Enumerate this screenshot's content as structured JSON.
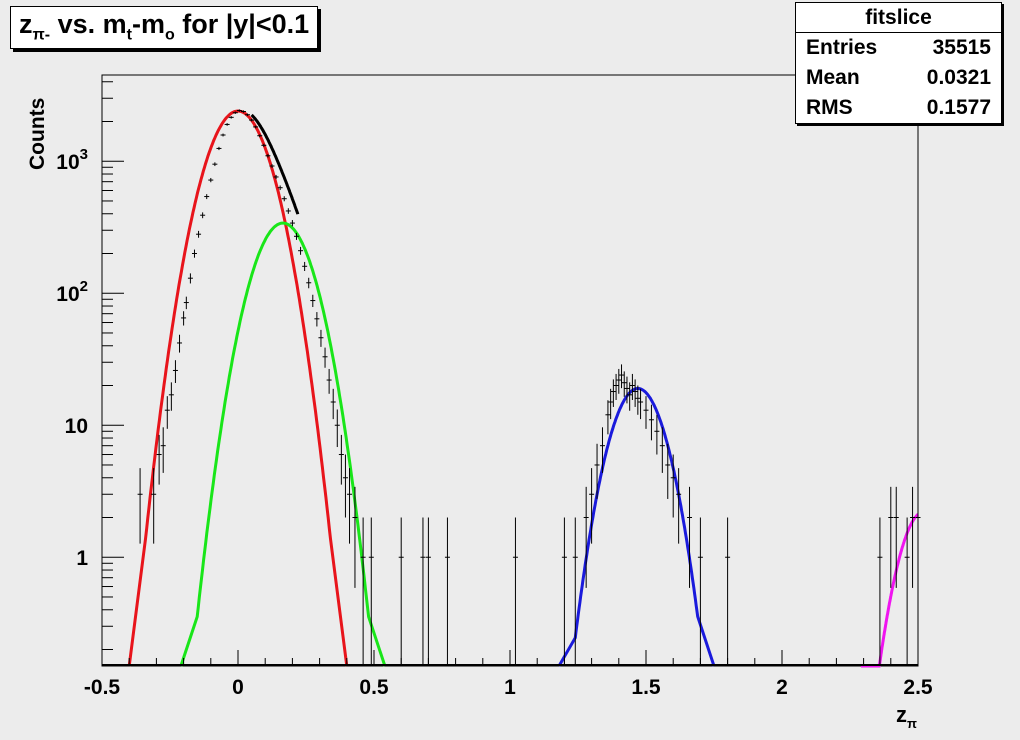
{
  "title": {
    "main": "z",
    "sub1": "π-",
    "mid": " vs. m",
    "sub2": "t",
    "mid2": "-m",
    "sub3": "o",
    "tail": " for |y|<0.1"
  },
  "stats": {
    "name": "fitslice",
    "rows": [
      {
        "label": "Entries",
        "value": "35515"
      },
      {
        "label": "Mean",
        "value": "0.0321"
      },
      {
        "label": "RMS",
        "value": "0.1577"
      }
    ]
  },
  "colors": {
    "background": "#ececec",
    "frame": "#000000",
    "data": "#000000",
    "fit_pion": "#e8141b",
    "fit_second": "#19e619",
    "fit_third": "#1a1adc",
    "fit_fourth": "#f014f0"
  },
  "chart_data": {
    "type": "scatter",
    "title": "zπ- vs. mt-mo for |y|<0.1",
    "xlabel": "zπ",
    "ylabel": "Counts",
    "xlim": [
      -0.5,
      2.5
    ],
    "ylim": [
      0.15,
      4500
    ],
    "yscale": "log",
    "grid": false,
    "legend": "none",
    "xticks": [
      {
        "value": -0.5,
        "label": "-0.5"
      },
      {
        "value": 0,
        "label": "0"
      },
      {
        "value": 0.5,
        "label": "0.5"
      },
      {
        "value": 1,
        "label": "1"
      },
      {
        "value": 1.5,
        "label": "1.5"
      },
      {
        "value": 2,
        "label": "2"
      },
      {
        "value": 2.5,
        "label": "2.5"
      }
    ],
    "yticks": [
      {
        "value": 1,
        "label": "1"
      },
      {
        "value": 10,
        "label": "10"
      },
      {
        "value": 100,
        "base": "10",
        "exp": "2"
      },
      {
        "value": 1000,
        "base": "10",
        "exp": "3"
      }
    ],
    "series": [
      {
        "kind": "data",
        "color": "#000000",
        "points": [
          [
            -0.36,
            3
          ],
          [
            -0.31,
            3
          ],
          [
            -0.29,
            6
          ],
          [
            -0.275,
            7
          ],
          [
            -0.26,
            13
          ],
          [
            -0.245,
            17
          ],
          [
            -0.23,
            26
          ],
          [
            -0.215,
            42
          ],
          [
            -0.2,
            65
          ],
          [
            -0.19,
            85
          ],
          [
            -0.175,
            130
          ],
          [
            -0.16,
            200
          ],
          [
            -0.145,
            280
          ],
          [
            -0.13,
            390
          ],
          [
            -0.115,
            540
          ],
          [
            -0.1,
            720
          ],
          [
            -0.085,
            950
          ],
          [
            -0.07,
            1250
          ],
          [
            -0.055,
            1580
          ],
          [
            -0.04,
            1900
          ],
          [
            -0.025,
            2150
          ],
          [
            -0.01,
            2330
          ],
          [
            0.005,
            2420
          ],
          [
            0.02,
            2380
          ],
          [
            0.035,
            2250
          ],
          [
            0.05,
            2050
          ],
          [
            0.065,
            1820
          ],
          [
            0.08,
            1560
          ],
          [
            0.095,
            1320
          ],
          [
            0.11,
            1100
          ],
          [
            0.125,
            920
          ],
          [
            0.14,
            760
          ],
          [
            0.155,
            630
          ],
          [
            0.17,
            520
          ],
          [
            0.185,
            420
          ],
          [
            0.2,
            340
          ],
          [
            0.215,
            270
          ],
          [
            0.23,
            210
          ],
          [
            0.245,
            160
          ],
          [
            0.26,
            120
          ],
          [
            0.275,
            88
          ],
          [
            0.29,
            64
          ],
          [
            0.305,
            46
          ],
          [
            0.32,
            33
          ],
          [
            0.335,
            22
          ],
          [
            0.35,
            15
          ],
          [
            0.365,
            10
          ],
          [
            0.38,
            6
          ],
          [
            0.395,
            4
          ],
          [
            0.41,
            3
          ],
          [
            0.43,
            2
          ],
          [
            0.46,
            1
          ],
          [
            0.49,
            1
          ],
          [
            0.6,
            1
          ],
          [
            0.68,
            1
          ],
          [
            0.7,
            1
          ],
          [
            0.77,
            1
          ],
          [
            1.02,
            1
          ],
          [
            1.2,
            1
          ],
          [
            1.24,
            1
          ],
          [
            1.28,
            2
          ],
          [
            1.3,
            3
          ],
          [
            1.32,
            5
          ],
          [
            1.34,
            7
          ],
          [
            1.36,
            12
          ],
          [
            1.37,
            15
          ],
          [
            1.38,
            18
          ],
          [
            1.39,
            20
          ],
          [
            1.4,
            22
          ],
          [
            1.41,
            24
          ],
          [
            1.42,
            21
          ],
          [
            1.43,
            19
          ],
          [
            1.44,
            17
          ],
          [
            1.45,
            20
          ],
          [
            1.46,
            18
          ],
          [
            1.47,
            16
          ],
          [
            1.48,
            15
          ],
          [
            1.5,
            13
          ],
          [
            1.52,
            11
          ],
          [
            1.54,
            9
          ],
          [
            1.56,
            7
          ],
          [
            1.58,
            5
          ],
          [
            1.6,
            4
          ],
          [
            1.62,
            3
          ],
          [
            1.66,
            2
          ],
          [
            1.7,
            1
          ],
          [
            1.8,
            1
          ],
          [
            2.36,
            1
          ],
          [
            2.4,
            2
          ],
          [
            2.42,
            2
          ],
          [
            2.46,
            1
          ],
          [
            2.48,
            2
          ],
          [
            2.5,
            2
          ]
        ]
      },
      {
        "kind": "fit",
        "color": "#000000",
        "name": "",
        "amp": 2400,
        "mean": 0.005,
        "sigma": 0.088,
        "from": 0.05,
        "to": 0.22,
        "extra": {
          "amp": 340,
          "mean": 0.165,
          "sigma": 0.085
        }
      },
      {
        "kind": "fit",
        "color": "#e8141b",
        "amp": 2400,
        "mean": 0.0,
        "sigma": 0.088,
        "from": -0.34,
        "to": 0.34
      },
      {
        "kind": "fit",
        "color": "#19e619",
        "amp": 340,
        "mean": 0.165,
        "sigma": 0.085,
        "from": -0.15,
        "to": 0.48
      },
      {
        "kind": "fit",
        "color": "#1a1adc",
        "amp": 19,
        "mean": 1.47,
        "sigma": 0.078,
        "from": 1.24,
        "to": 1.69
      },
      {
        "kind": "fit",
        "color": "#f014f0",
        "amp": 2.2,
        "mean": 2.52,
        "sigma": 0.07,
        "from": 2.35,
        "to": 2.5
      }
    ]
  }
}
